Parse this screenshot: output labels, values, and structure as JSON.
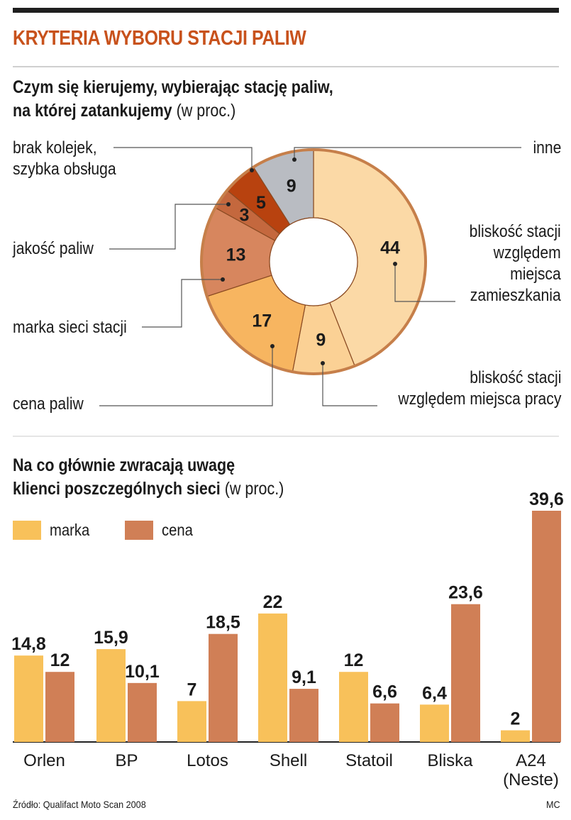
{
  "title": "KRYTERIA WYBORU STACJI PALIW",
  "donut": {
    "subtitle_line1": "Czym się kierujemy, wybierając stację paliw,",
    "subtitle_line2": "na której zatankujemy",
    "unit": "(w proc.)"
  },
  "bars": {
    "subtitle_line1": "Na co głównie zwracają uwagę",
    "subtitle_line2": "klienci poszczególnych sieci",
    "unit": "(w proc.)"
  },
  "colors": {
    "accent": "#c8521c",
    "marka": "#f8c15a",
    "cena": "#d07f56",
    "donut_edge": "#c67f4a"
  },
  "chart_data": [
    {
      "type": "pie",
      "variant": "donut",
      "categories": [
        "bliskość stacji\nwzględem\nmiejsca\nzamieszkania",
        "bliskość stacji\nwzględem miejsca pracy",
        "cena paliw",
        "marka sieci stacji",
        "jakość paliw",
        "brak kolejek,\nszybka obsługa",
        "inne"
      ],
      "values": [
        44,
        9,
        17,
        13,
        3,
        5,
        9
      ],
      "value_labels": [
        "44",
        "9",
        "17",
        "13",
        "3",
        "5",
        "9"
      ],
      "slice_colors": [
        "#fbd9a6",
        "#fbd195",
        "#f7b560",
        "#d7865e",
        "#c4683e",
        "#b8420f",
        "#b9bcc2"
      ]
    },
    {
      "type": "bar",
      "categories": [
        "Orlen",
        "BP",
        "Lotos",
        "Shell",
        "Statoil",
        "Bliska",
        "A24\n(Neste)"
      ],
      "series": [
        {
          "name": "marka",
          "values": [
            14.8,
            15.9,
            7,
            22,
            12,
            6.4,
            2
          ],
          "labels": [
            "14,8",
            "15,9",
            "7",
            "22",
            "12",
            "6,4",
            "2"
          ]
        },
        {
          "name": "cena",
          "values": [
            12,
            10.1,
            18.5,
            9.1,
            6.6,
            23.6,
            39.6
          ],
          "labels": [
            "12",
            "10,1",
            "18,5",
            "9,1",
            "6,6",
            "23,6",
            "39,6"
          ]
        }
      ],
      "ylim": [
        0,
        39.6
      ],
      "legend": "top-left",
      "grid": false
    }
  ],
  "footer": {
    "source": "Źródło: Qualifact Moto Scan 2008",
    "credit": "MC"
  }
}
